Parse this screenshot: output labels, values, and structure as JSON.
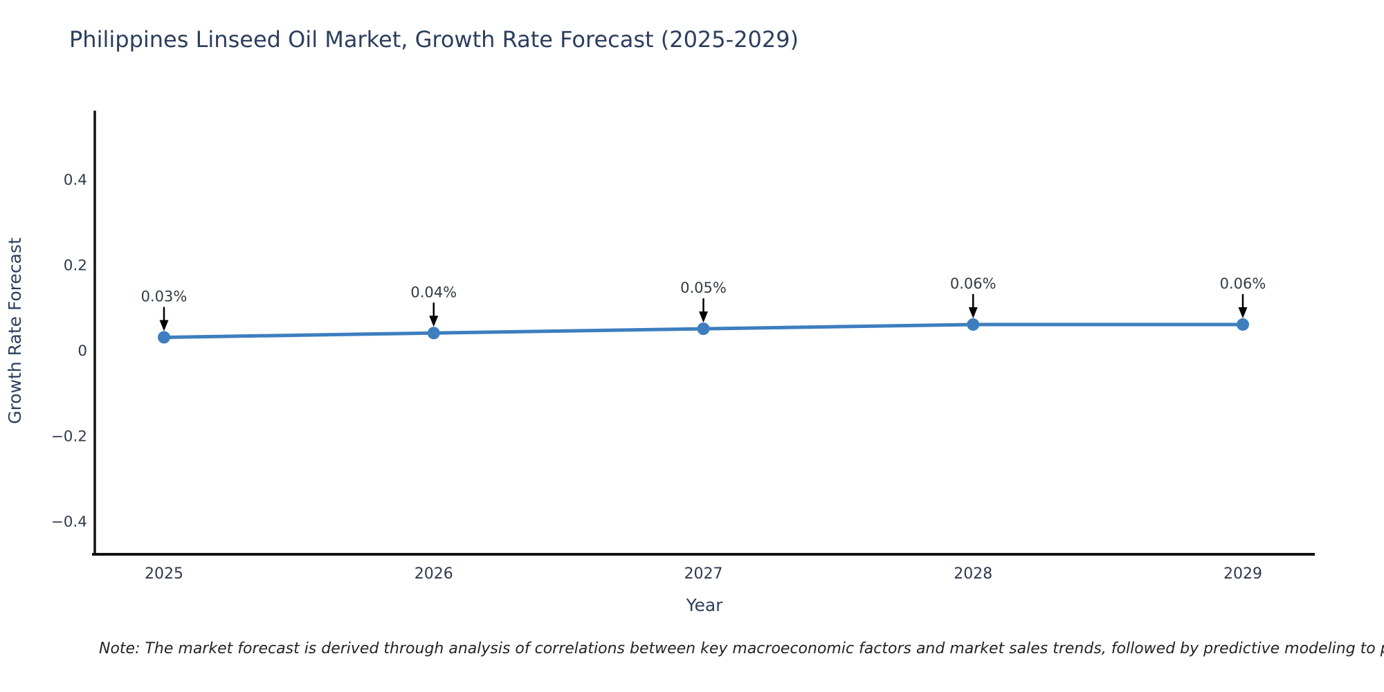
{
  "chart": {
    "note": "Note: The market forecast is derived through analysis of correlations between key macroeconomic factors and market sales trends, followed by predictive modeling to project future sales"
  },
  "chart_data": {
    "type": "line",
    "title": "Philippines Linseed Oil Market, Growth Rate Forecast (2025-2029)",
    "xlabel": "Year",
    "ylabel": "Growth Rate Forecast",
    "x": [
      2025,
      2026,
      2027,
      2028,
      2029
    ],
    "series": [
      {
        "name": "Growth Rate Forecast",
        "values": [
          0.03,
          0.04,
          0.05,
          0.06,
          0.06
        ]
      }
    ],
    "point_labels": [
      "0.03%",
      "0.04%",
      "0.05%",
      "0.06%",
      "0.06%"
    ],
    "yticks": [
      0.4,
      0.2,
      0,
      -0.2,
      -0.4
    ],
    "ytick_labels": [
      "0.4",
      "0.2",
      "0",
      "−0.2",
      "−0.4"
    ],
    "ylim": [
      -0.48,
      0.56
    ],
    "grid": false,
    "legend": "none",
    "line_color": "#3d7ebf",
    "marker_color": "#3d7ebf",
    "axis_color": "#111111",
    "arrow_color": "#000000"
  }
}
